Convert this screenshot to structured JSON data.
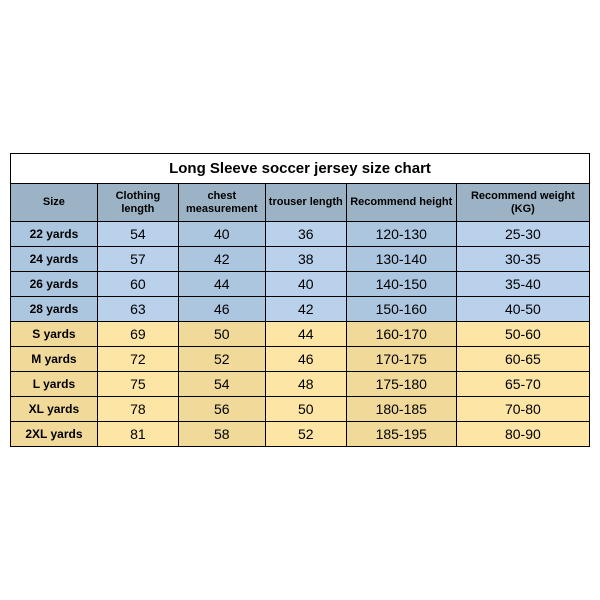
{
  "table": {
    "type": "table",
    "title": "Long Sleeve soccer jersey size chart",
    "columns": [
      "Size",
      "Clothing length",
      "chest measurement",
      "trouser length",
      "Recommend height",
      "Recommend weight (KG)"
    ],
    "column_widths_pct": [
      15,
      14,
      15,
      14,
      19,
      23
    ],
    "rows": [
      {
        "size": "22 yards",
        "clothing_length": "54",
        "chest": "40",
        "trouser": "36",
        "height": "120-130",
        "weight": "25-30",
        "band": "blue"
      },
      {
        "size": "24 yards",
        "clothing_length": "57",
        "chest": "42",
        "trouser": "38",
        "height": "130-140",
        "weight": "30-35",
        "band": "blue"
      },
      {
        "size": "26 yards",
        "clothing_length": "60",
        "chest": "44",
        "trouser": "40",
        "height": "140-150",
        "weight": "35-40",
        "band": "blue"
      },
      {
        "size": "28 yards",
        "clothing_length": "63",
        "chest": "46",
        "trouser": "42",
        "height": "150-160",
        "weight": "40-50",
        "band": "blue"
      },
      {
        "size": "S yards",
        "clothing_length": "69",
        "chest": "50",
        "trouser": "44",
        "height": "160-170",
        "weight": "50-60",
        "band": "yellow"
      },
      {
        "size": "M yards",
        "clothing_length": "72",
        "chest": "52",
        "trouser": "46",
        "height": "170-175",
        "weight": "60-65",
        "band": "yellow"
      },
      {
        "size": "L yards",
        "clothing_length": "75",
        "chest": "54",
        "trouser": "48",
        "height": "175-180",
        "weight": "65-70",
        "band": "yellow"
      },
      {
        "size": "XL yards",
        "clothing_length": "78",
        "chest": "56",
        "trouser": "50",
        "height": "180-185",
        "weight": "70-80",
        "band": "yellow"
      },
      {
        "size": "2XL yards",
        "clothing_length": "81",
        "chest": "58",
        "trouser": "52",
        "height": "185-195",
        "weight": "80-90",
        "band": "yellow"
      }
    ],
    "colors": {
      "header_bg": "#9cb3c6",
      "blue_row": "#b9d1eb",
      "blue_row_dim": "#acc6e0",
      "yellow_row": "#fce5a5",
      "yellow_row_dim": "#f0d999",
      "border": "#000000",
      "title_bg": "#ffffff"
    },
    "fonts": {
      "title_size": 15,
      "header_size": 11,
      "cell_size": 12,
      "num_size": 14
    }
  }
}
